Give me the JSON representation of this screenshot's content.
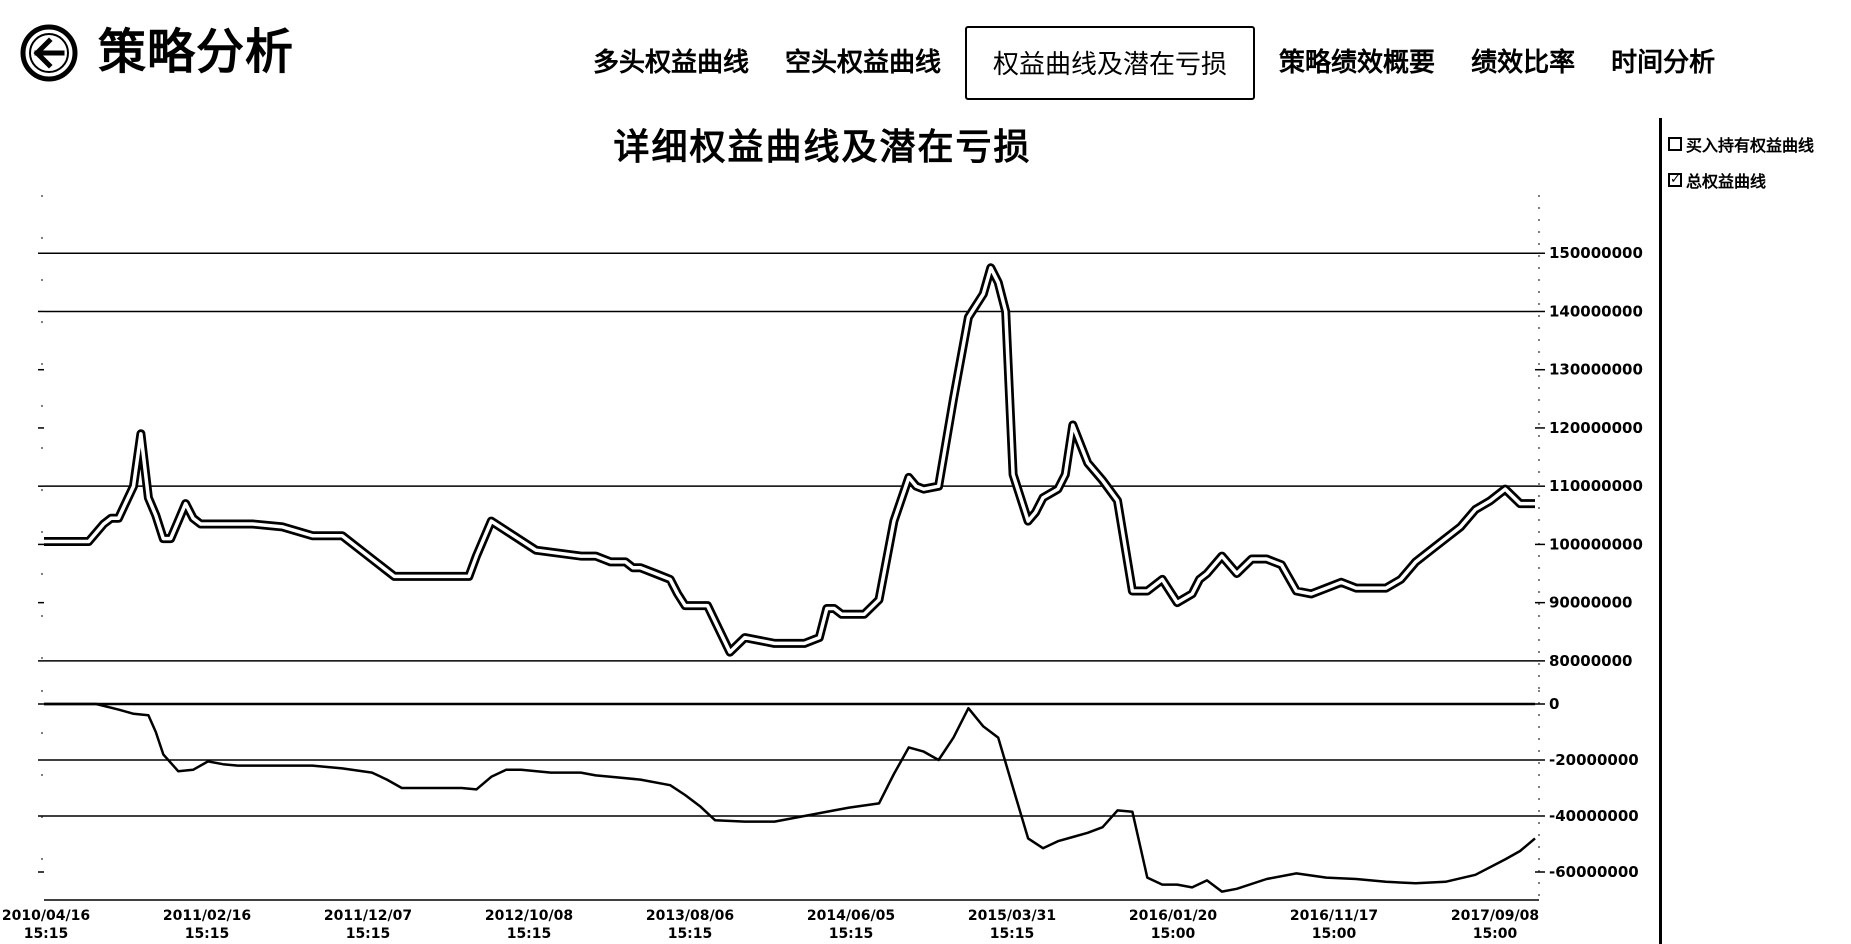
{
  "app": {
    "title": "策略分析",
    "back_icon": "back-arrow-icon"
  },
  "tabs": [
    {
      "label": "多头权益曲线",
      "active": false
    },
    {
      "label": "空头权益曲线",
      "active": false
    },
    {
      "label": "权益曲线及潜在亏损",
      "active": true
    },
    {
      "label": "策略绩效概要",
      "active": false
    },
    {
      "label": "绩效比率",
      "active": false
    },
    {
      "label": "时间分析",
      "active": false
    }
  ],
  "legend": [
    {
      "label": "买入持有权益曲线",
      "checked": false
    },
    {
      "label": "总权益曲线",
      "checked": true
    }
  ],
  "chart_data": [
    {
      "type": "line",
      "title": "详细权益曲线及潜在亏损",
      "ylim": [
        75000000,
        160000000
      ],
      "yticks": [
        80000000,
        90000000,
        100000000,
        110000000,
        120000000,
        130000000,
        140000000,
        150000000
      ],
      "ytick_labels": [
        "80000000",
        "90000000",
        "100000000",
        "110000000",
        "120000000",
        "130000000",
        "140000000",
        "150000000"
      ],
      "gridlines": [
        80000000,
        110000000,
        140000000,
        150000000
      ],
      "grid": true,
      "xlim": [
        0,
        100
      ],
      "series": [
        {
          "x": [
            0,
            3,
            4,
            4.5,
            5,
            6,
            6.5,
            7,
            7.5,
            8,
            8.5,
            9,
            9.5,
            10,
            10.5,
            11,
            12,
            13,
            14,
            16,
            18,
            19,
            20,
            22,
            23.5,
            25,
            26,
            27,
            27.5,
            28,
            28.5,
            29,
            30,
            33,
            36,
            37,
            38,
            38.5,
            39,
            39.5,
            40,
            41,
            42,
            42.5,
            43,
            44.5,
            46,
            47,
            49,
            50,
            51,
            52,
            52.5,
            53,
            53.5,
            54,
            55,
            56,
            57,
            58,
            58.5,
            59,
            60,
            61,
            62,
            63,
            63.5,
            64,
            64.5,
            65,
            66,
            66.5,
            67,
            68,
            68.5,
            69,
            70,
            71,
            72,
            73,
            74,
            75,
            76,
            77,
            77.5,
            78,
            79,
            80,
            81,
            82,
            83,
            84,
            85,
            86,
            87,
            88,
            89,
            90,
            91,
            92,
            93,
            94,
            95,
            96,
            97,
            98,
            99,
            100
          ],
          "y": [
            100500000,
            100500000,
            103500000,
            104500000,
            104500000,
            110000000,
            119000000,
            108000000,
            105000000,
            101000000,
            101000000,
            104000000,
            107000000,
            104500000,
            103500000,
            103500000,
            103500000,
            103500000,
            103500000,
            103000000,
            101500000,
            101500000,
            101500000,
            97500000,
            94500000,
            94500000,
            94500000,
            94500000,
            94500000,
            94500000,
            94500000,
            98000000,
            104000000,
            99000000,
            98000000,
            98000000,
            97000000,
            97000000,
            97000000,
            96000000,
            96000000,
            95000000,
            94000000,
            91500000,
            89500000,
            89500000,
            81500000,
            84000000,
            83000000,
            83000000,
            83000000,
            84000000,
            89000000,
            89000000,
            88000000,
            88000000,
            88000000,
            90500000,
            104000000,
            111500000,
            110000000,
            109500000,
            110000000,
            125000000,
            139000000,
            143000000,
            147500000,
            145000000,
            140000000,
            112000000,
            104000000,
            105500000,
            108000000,
            109500000,
            112000000,
            120500000,
            114000000,
            111000000,
            107500000,
            92000000,
            92000000,
            94000000,
            90000000,
            91500000,
            94000000,
            95000000,
            98000000,
            95000000,
            97500000,
            97500000,
            96500000,
            92000000,
            91500000,
            92500000,
            93500000,
            92500000,
            92500000,
            92500000,
            94000000,
            97000000,
            99000000,
            101000000,
            103000000,
            106000000,
            107500000,
            109500000,
            107000000,
            107000000
          ]
        }
      ]
    },
    {
      "type": "line",
      "ylim": [
        -70000000,
        5000000
      ],
      "yticks": [
        0,
        -20000000,
        -40000000,
        -60000000
      ],
      "ytick_labels": [
        "0",
        "-20000000",
        "-40000000",
        "-60000000"
      ],
      "gridlines": [
        0,
        -20000000,
        -40000000
      ],
      "grid": true,
      "xlim": [
        0,
        100
      ],
      "series": [
        {
          "x": [
            0,
            3.5,
            5,
            6,
            7,
            7.5,
            8,
            9,
            10,
            11,
            12,
            13,
            14,
            16,
            18,
            20,
            22,
            23,
            24,
            26,
            28,
            29,
            30,
            31,
            32,
            34,
            36,
            37,
            38,
            40,
            42,
            43,
            44,
            45,
            47,
            49,
            51,
            53,
            54,
            56,
            57,
            58,
            59,
            60,
            61,
            62,
            63,
            64,
            65,
            66,
            67,
            68,
            69,
            70,
            71,
            72,
            73,
            74,
            75,
            76,
            77,
            78,
            79,
            80,
            82,
            84,
            86,
            88,
            90,
            92,
            94,
            96,
            98,
            99,
            100
          ],
          "y": [
            0,
            0,
            -2000000,
            -3500000,
            -4000000,
            -10000000,
            -18000000,
            -24000000,
            -23500000,
            -20500000,
            -21500000,
            -22000000,
            -22000000,
            -22000000,
            -22000000,
            -23000000,
            -24500000,
            -27000000,
            -30000000,
            -30000000,
            -30000000,
            -30500000,
            -26000000,
            -23500000,
            -23500000,
            -24500000,
            -24500000,
            -25500000,
            -26000000,
            -27000000,
            -29000000,
            -32500000,
            -36500000,
            -41500000,
            -42000000,
            -42000000,
            -40000000,
            -38000000,
            -37000000,
            -35500000,
            -25000000,
            -15500000,
            -17000000,
            -20000000,
            -12000000,
            -1500000,
            -8000000,
            -12000000,
            -30000000,
            -48000000,
            -51500000,
            -49000000,
            -47500000,
            -46000000,
            -44000000,
            -38000000,
            -38500000,
            -62000000,
            -64500000,
            -64500000,
            -65500000,
            -63000000,
            -67000000,
            -66000000,
            -62500000,
            -60500000,
            -62000000,
            -62500000,
            -63500000,
            -64000000,
            -63500000,
            -61000000,
            -55500000,
            -52500000,
            -48000000
          ]
        }
      ]
    }
  ],
  "x_tick_labels": [
    {
      "date": "2010/04/16",
      "time": "15:15"
    },
    {
      "date": "2011/02/16",
      "time": "15:15"
    },
    {
      "date": "2011/12/07",
      "time": "15:15"
    },
    {
      "date": "2012/10/08",
      "time": "15:15"
    },
    {
      "date": "2013/08/06",
      "time": "15:15"
    },
    {
      "date": "2014/06/05",
      "time": "15:15"
    },
    {
      "date": "2015/03/31",
      "time": "15:15"
    },
    {
      "date": "2016/01/20",
      "time": "15:00"
    },
    {
      "date": "2016/11/17",
      "time": "15:00"
    },
    {
      "date": "2017/09/08",
      "time": "15:00"
    }
  ]
}
